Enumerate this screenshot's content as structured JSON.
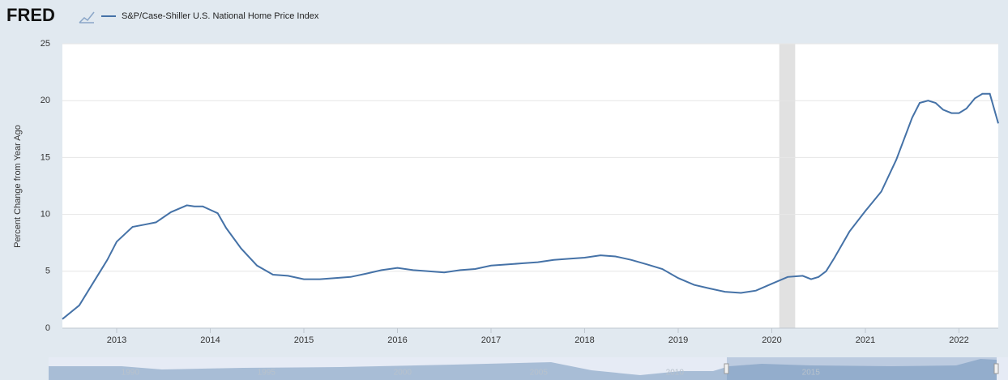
{
  "chart_data": {
    "type": "line",
    "brand": "FRED",
    "y_label": "Percent Change from Year Ago",
    "x": [
      2012.42,
      2012.6,
      2012.75,
      2012.9,
      2013.0,
      2013.17,
      2013.3,
      2013.42,
      2013.58,
      2013.75,
      2013.83,
      2013.92,
      2014.0,
      2014.08,
      2014.17,
      2014.33,
      2014.5,
      2014.67,
      2014.83,
      2015.0,
      2015.17,
      2015.33,
      2015.5,
      2015.67,
      2015.83,
      2016.0,
      2016.17,
      2016.33,
      2016.5,
      2016.67,
      2016.83,
      2017.0,
      2017.17,
      2017.33,
      2017.5,
      2017.67,
      2017.83,
      2018.0,
      2018.17,
      2018.33,
      2018.5,
      2018.67,
      2018.83,
      2019.0,
      2019.17,
      2019.33,
      2019.5,
      2019.67,
      2019.83,
      2020.0,
      2020.17,
      2020.33,
      2020.42,
      2020.5,
      2020.58,
      2020.67,
      2020.83,
      2021.0,
      2021.17,
      2021.33,
      2021.5,
      2021.58,
      2021.67,
      2021.75,
      2021.83,
      2021.92,
      2022.0,
      2022.08,
      2022.17,
      2022.25,
      2022.33,
      2022.42
    ],
    "series": [
      {
        "name": "S&P/Case-Shiller U.S. National Home Price Index",
        "color": "#4572a7",
        "values": [
          0.8,
          2.0,
          4.0,
          6.0,
          7.6,
          8.9,
          9.1,
          9.3,
          10.2,
          10.8,
          10.7,
          10.7,
          10.4,
          10.1,
          8.8,
          7.0,
          5.5,
          4.7,
          4.6,
          4.3,
          4.3,
          4.4,
          4.5,
          4.8,
          5.1,
          5.3,
          5.1,
          5.0,
          4.9,
          5.1,
          5.2,
          5.5,
          5.6,
          5.7,
          5.8,
          6.0,
          6.1,
          6.2,
          6.4,
          6.3,
          6.0,
          5.6,
          5.2,
          4.4,
          3.8,
          3.5,
          3.2,
          3.1,
          3.3,
          3.9,
          4.5,
          4.6,
          4.3,
          4.5,
          5.0,
          6.2,
          8.5,
          10.3,
          12.0,
          14.8,
          18.5,
          19.8,
          20.0,
          19.8,
          19.2,
          18.9,
          18.9,
          19.3,
          20.2,
          20.6,
          20.6,
          18.0
        ]
      }
    ],
    "recession": [
      2020.08,
      2020.25
    ],
    "xlim": [
      2012.42,
      2022.42
    ],
    "xticks": [
      2013,
      2014,
      2015,
      2016,
      2017,
      2018,
      2019,
      2020,
      2021,
      2022
    ],
    "ylim": [
      0,
      25
    ],
    "yticks": [
      0,
      5,
      10,
      15,
      20,
      25
    ],
    "grid": true,
    "navigator_ticks": [
      1990,
      1995,
      2000,
      2005,
      2010,
      2015
    ]
  }
}
